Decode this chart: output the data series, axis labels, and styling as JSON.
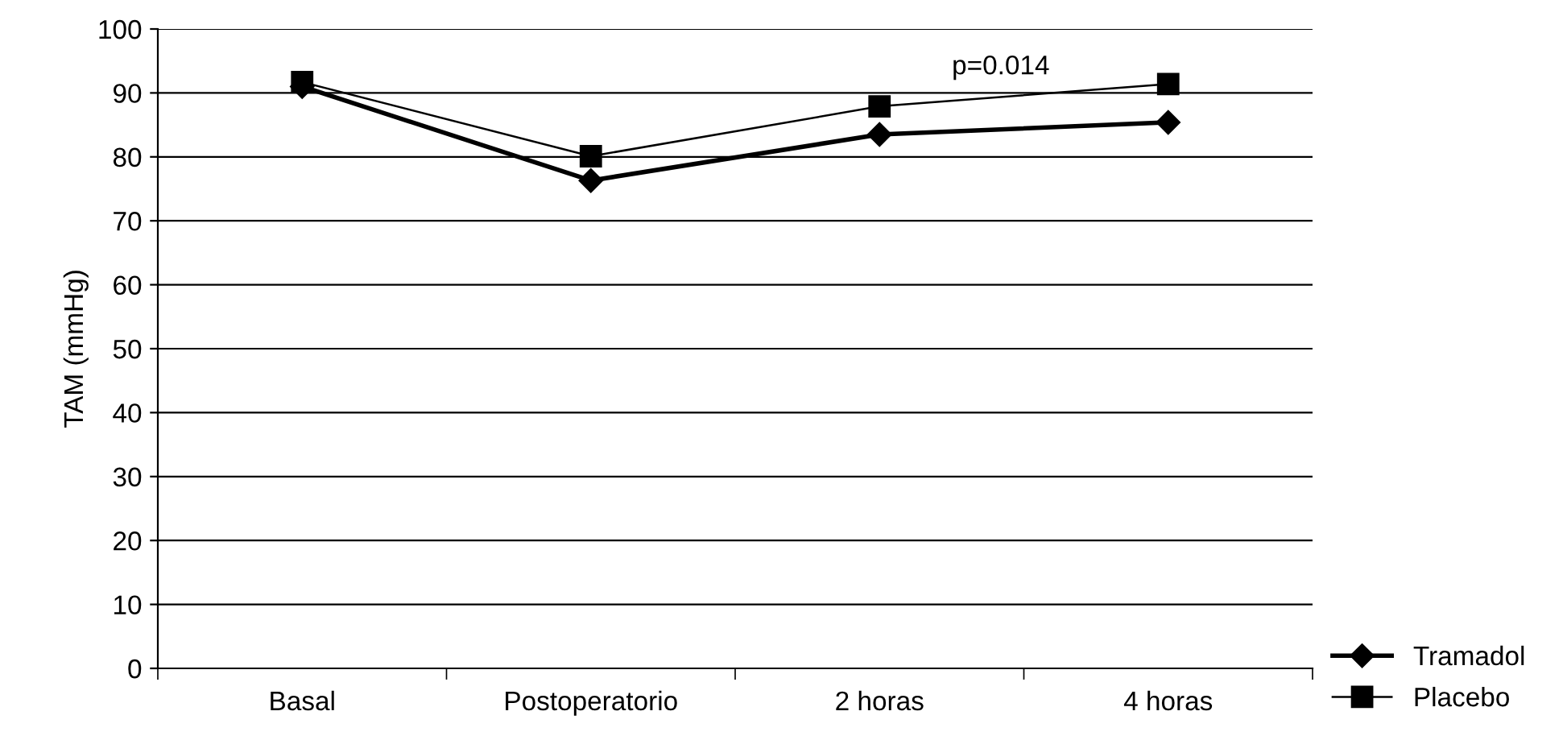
{
  "chart_data": {
    "type": "line",
    "ylabel": "TAM (mmHg)",
    "categories": [
      "Basal",
      "Postoperatorio",
      "2 horas",
      "4 horas"
    ],
    "series": [
      {
        "name": "Tramadol",
        "color": "#000000",
        "values": [
          91,
          76.3,
          83.5,
          85.4
        ],
        "marker": "diamond"
      },
      {
        "name": "Placebo",
        "color": "#000000",
        "values": [
          91.7,
          80.1,
          87.9,
          91.4
        ],
        "marker": "square"
      }
    ],
    "ylim": [
      0,
      100
    ],
    "yticks": [
      0,
      10,
      20,
      30,
      40,
      50,
      60,
      70,
      80,
      90,
      100
    ],
    "grid": "y",
    "legend": "bottom right",
    "line_style": "solid",
    "annotations": [
      "p=0.014"
    ]
  }
}
